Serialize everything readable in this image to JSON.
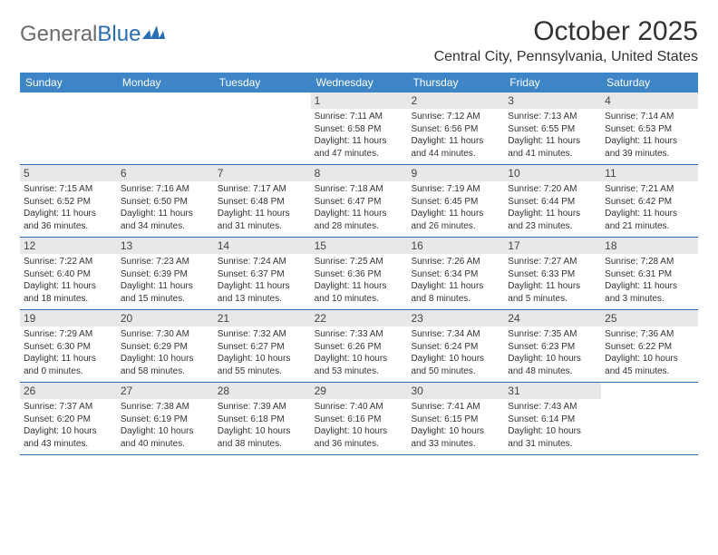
{
  "logo": {
    "text1": "General",
    "text2": "Blue"
  },
  "header": {
    "month_title": "October 2025",
    "location": "Central City, Pennsylvania, United States"
  },
  "colors": {
    "header_bg": "#3d85c6",
    "header_text": "#ffffff",
    "daynum_bg": "#e8e8e8",
    "row_border": "#2a6db5",
    "logo_gray": "#6b6b6b",
    "logo_blue": "#2a6db5",
    "text": "#333333"
  },
  "day_names": [
    "Sunday",
    "Monday",
    "Tuesday",
    "Wednesday",
    "Thursday",
    "Friday",
    "Saturday"
  ],
  "weeks": [
    [
      null,
      null,
      null,
      {
        "n": "1",
        "sr": "7:11 AM",
        "ss": "6:58 PM",
        "dh": "11",
        "dm": "47"
      },
      {
        "n": "2",
        "sr": "7:12 AM",
        "ss": "6:56 PM",
        "dh": "11",
        "dm": "44"
      },
      {
        "n": "3",
        "sr": "7:13 AM",
        "ss": "6:55 PM",
        "dh": "11",
        "dm": "41"
      },
      {
        "n": "4",
        "sr": "7:14 AM",
        "ss": "6:53 PM",
        "dh": "11",
        "dm": "39"
      }
    ],
    [
      {
        "n": "5",
        "sr": "7:15 AM",
        "ss": "6:52 PM",
        "dh": "11",
        "dm": "36"
      },
      {
        "n": "6",
        "sr": "7:16 AM",
        "ss": "6:50 PM",
        "dh": "11",
        "dm": "34"
      },
      {
        "n": "7",
        "sr": "7:17 AM",
        "ss": "6:48 PM",
        "dh": "11",
        "dm": "31"
      },
      {
        "n": "8",
        "sr": "7:18 AM",
        "ss": "6:47 PM",
        "dh": "11",
        "dm": "28"
      },
      {
        "n": "9",
        "sr": "7:19 AM",
        "ss": "6:45 PM",
        "dh": "11",
        "dm": "26"
      },
      {
        "n": "10",
        "sr": "7:20 AM",
        "ss": "6:44 PM",
        "dh": "11",
        "dm": "23"
      },
      {
        "n": "11",
        "sr": "7:21 AM",
        "ss": "6:42 PM",
        "dh": "11",
        "dm": "21"
      }
    ],
    [
      {
        "n": "12",
        "sr": "7:22 AM",
        "ss": "6:40 PM",
        "dh": "11",
        "dm": "18"
      },
      {
        "n": "13",
        "sr": "7:23 AM",
        "ss": "6:39 PM",
        "dh": "11",
        "dm": "15"
      },
      {
        "n": "14",
        "sr": "7:24 AM",
        "ss": "6:37 PM",
        "dh": "11",
        "dm": "13"
      },
      {
        "n": "15",
        "sr": "7:25 AM",
        "ss": "6:36 PM",
        "dh": "11",
        "dm": "10"
      },
      {
        "n": "16",
        "sr": "7:26 AM",
        "ss": "6:34 PM",
        "dh": "11",
        "dm": "8"
      },
      {
        "n": "17",
        "sr": "7:27 AM",
        "ss": "6:33 PM",
        "dh": "11",
        "dm": "5"
      },
      {
        "n": "18",
        "sr": "7:28 AM",
        "ss": "6:31 PM",
        "dh": "11",
        "dm": "3"
      }
    ],
    [
      {
        "n": "19",
        "sr": "7:29 AM",
        "ss": "6:30 PM",
        "dh": "11",
        "dm": "0"
      },
      {
        "n": "20",
        "sr": "7:30 AM",
        "ss": "6:29 PM",
        "dh": "10",
        "dm": "58"
      },
      {
        "n": "21",
        "sr": "7:32 AM",
        "ss": "6:27 PM",
        "dh": "10",
        "dm": "55"
      },
      {
        "n": "22",
        "sr": "7:33 AM",
        "ss": "6:26 PM",
        "dh": "10",
        "dm": "53"
      },
      {
        "n": "23",
        "sr": "7:34 AM",
        "ss": "6:24 PM",
        "dh": "10",
        "dm": "50"
      },
      {
        "n": "24",
        "sr": "7:35 AM",
        "ss": "6:23 PM",
        "dh": "10",
        "dm": "48"
      },
      {
        "n": "25",
        "sr": "7:36 AM",
        "ss": "6:22 PM",
        "dh": "10",
        "dm": "45"
      }
    ],
    [
      {
        "n": "26",
        "sr": "7:37 AM",
        "ss": "6:20 PM",
        "dh": "10",
        "dm": "43"
      },
      {
        "n": "27",
        "sr": "7:38 AM",
        "ss": "6:19 PM",
        "dh": "10",
        "dm": "40"
      },
      {
        "n": "28",
        "sr": "7:39 AM",
        "ss": "6:18 PM",
        "dh": "10",
        "dm": "38"
      },
      {
        "n": "29",
        "sr": "7:40 AM",
        "ss": "6:16 PM",
        "dh": "10",
        "dm": "36"
      },
      {
        "n": "30",
        "sr": "7:41 AM",
        "ss": "6:15 PM",
        "dh": "10",
        "dm": "33"
      },
      {
        "n": "31",
        "sr": "7:43 AM",
        "ss": "6:14 PM",
        "dh": "10",
        "dm": "31"
      },
      null
    ]
  ],
  "labels": {
    "sunrise": "Sunrise:",
    "sunset": "Sunset:",
    "daylight": "Daylight:",
    "hours_word": "hours",
    "and_word": "and",
    "minutes_word": "minutes."
  }
}
